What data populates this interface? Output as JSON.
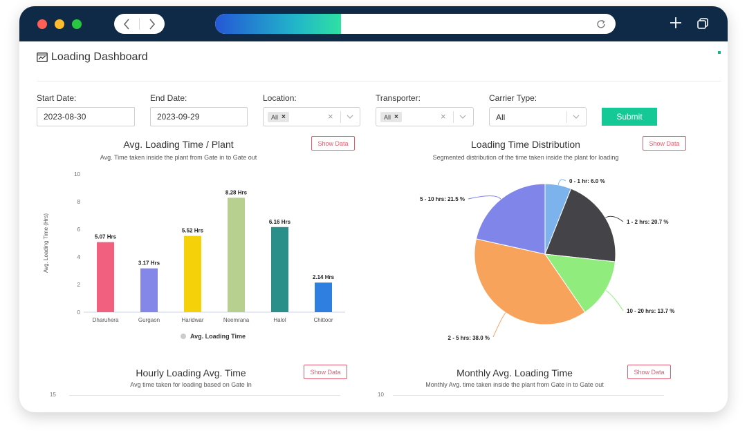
{
  "browser": {
    "back_icon": "chevron-left-icon",
    "forward_icon": "chevron-right-icon",
    "reload_icon": "reload-icon",
    "new_tab_icon": "plus-icon",
    "tabs_icon": "tabs-icon"
  },
  "page": {
    "title": "Loading Dashboard",
    "title_icon": "dashboard-icon"
  },
  "filters": {
    "start_date": {
      "label": "Start Date:",
      "value": "2023-08-30"
    },
    "end_date": {
      "label": "End Date:",
      "value": "2023-09-29"
    },
    "location": {
      "label": "Location:",
      "chip": "All"
    },
    "transporter": {
      "label": "Transporter:",
      "chip": "All"
    },
    "carrier_type": {
      "label": "Carrier Type:",
      "value": "All"
    },
    "submit_label": "Submit"
  },
  "show_data_label": "Show Data",
  "colors": {
    "accent": "#14c995",
    "show_data": "#e25b6e",
    "chrome": "#0e2a46"
  },
  "chart_data": [
    {
      "type": "bar",
      "title": "Avg. Loading Time / Plant",
      "subtitle": "Avg. Time taken inside the plant from Gate in to Gate out",
      "ylabel": "Avg. Loading Time (Hrs)",
      "ylim": [
        0,
        10
      ],
      "yticks": [
        0,
        2,
        4,
        6,
        8,
        10
      ],
      "categories": [
        "Dharuhera",
        "Gurgaon",
        "Haridwar",
        "Neemrana",
        "Halol",
        "Chittoor"
      ],
      "values": [
        5.07,
        3.17,
        5.52,
        8.28,
        6.16,
        2.14
      ],
      "data_labels": [
        "5.07 Hrs",
        "3.17 Hrs",
        "5.52 Hrs",
        "8.28 Hrs",
        "6.16 Hrs",
        "2.14 Hrs"
      ],
      "colors": [
        "#f2607f",
        "#8587e8",
        "#f5d10a",
        "#b7cf8f",
        "#2a8f88",
        "#2f7fe0"
      ],
      "legend": "Avg. Loading Time",
      "grid": false
    },
    {
      "type": "pie",
      "title": "Loading Time Distribution",
      "subtitle": "Segmented distribution of the time taken inside the plant for loading",
      "slices": [
        {
          "label": "0 - 1 hr: 6.0 %",
          "value": 6.0,
          "color": "#7cb3ec"
        },
        {
          "label": "1 - 2 hrs: 20.7 %",
          "value": 20.7,
          "color": "#434348"
        },
        {
          "label": "10 - 20 hrs: 13.7 %",
          "value": 13.7,
          "color": "#90ed7d"
        },
        {
          "label": "2 - 5 hrs: 38.0 %",
          "value": 38.0,
          "color": "#f7a35c"
        },
        {
          "label": "5 - 10 hrs: 21.5 %",
          "value": 21.5,
          "color": "#8085e9"
        }
      ]
    },
    {
      "type": "line",
      "title": "Hourly Loading Avg. Time",
      "subtitle": "Avg time taken for loading based on Gate In",
      "ytick_top": "15"
    },
    {
      "type": "line",
      "title": "Monthly Avg. Loading Time",
      "subtitle": "Monthly Avg. time taken inside the plant from Gate in to Gate out",
      "ytick_top": "10"
    }
  ]
}
